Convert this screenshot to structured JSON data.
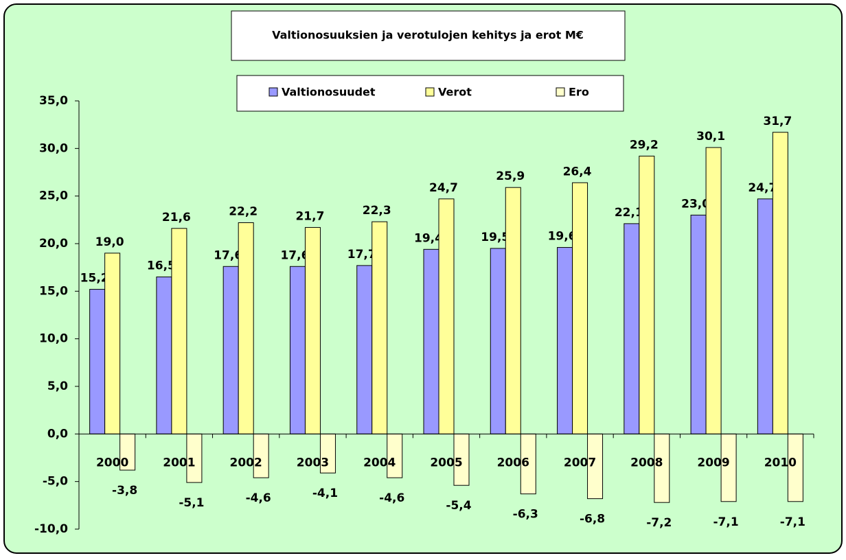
{
  "chart_data": {
    "type": "bar",
    "title": "Valtionosuuksien ja verotulojen kehitys ja erot M€",
    "categories": [
      "2000",
      "2001",
      "2002",
      "2003",
      "2004",
      "2005",
      "2006",
      "2007",
      "2008",
      "2009",
      "2010"
    ],
    "series": [
      {
        "name": "Valtionosuudet",
        "color": "#9999ff",
        "values": [
          15.2,
          16.5,
          17.6,
          17.6,
          17.7,
          19.4,
          19.5,
          19.6,
          22.1,
          23.0,
          24.7
        ],
        "value_labels": [
          "15,2",
          "16,5",
          "17,6",
          "17,6",
          "17,7",
          "19,4",
          "19,5",
          "19,6",
          "22,1",
          "23,0",
          "24,7"
        ]
      },
      {
        "name": "Verot",
        "color": "#ffff99",
        "values": [
          19.0,
          21.6,
          22.2,
          21.7,
          22.3,
          24.7,
          25.9,
          26.4,
          29.2,
          30.1,
          31.7
        ],
        "value_labels": [
          "19,0",
          "21,6",
          "22,2",
          "21,7",
          "22,3",
          "24,7",
          "25,9",
          "26,4",
          "29,2",
          "30,1",
          "31,7"
        ]
      },
      {
        "name": "Ero",
        "color": "#ffffcc",
        "values": [
          -3.8,
          -5.1,
          -4.6,
          -4.1,
          -4.6,
          -5.4,
          -6.3,
          -6.8,
          -7.2,
          -7.1,
          -7.1
        ],
        "value_labels": [
          "-3,8",
          "-5,1",
          "-4,6",
          "-4,1",
          "-4,6",
          "-5,4",
          "-6,3",
          "-6,8",
          "-7,2",
          "-7,1",
          "-7,1"
        ]
      }
    ],
    "ylim": [
      -10,
      35
    ],
    "yticks": [
      {
        "value": -10,
        "label": "-10,0"
      },
      {
        "value": -5,
        "label": "-5,0"
      },
      {
        "value": 0,
        "label": "0,0"
      },
      {
        "value": 5,
        "label": "5,0"
      },
      {
        "value": 10,
        "label": "10,0"
      },
      {
        "value": 15,
        "label": "15,0"
      },
      {
        "value": 20,
        "label": "20,0"
      },
      {
        "value": 25,
        "label": "25,0"
      },
      {
        "value": 30,
        "label": "30,0"
      },
      {
        "value": 35,
        "label": "35,0"
      }
    ],
    "grid": false
  }
}
